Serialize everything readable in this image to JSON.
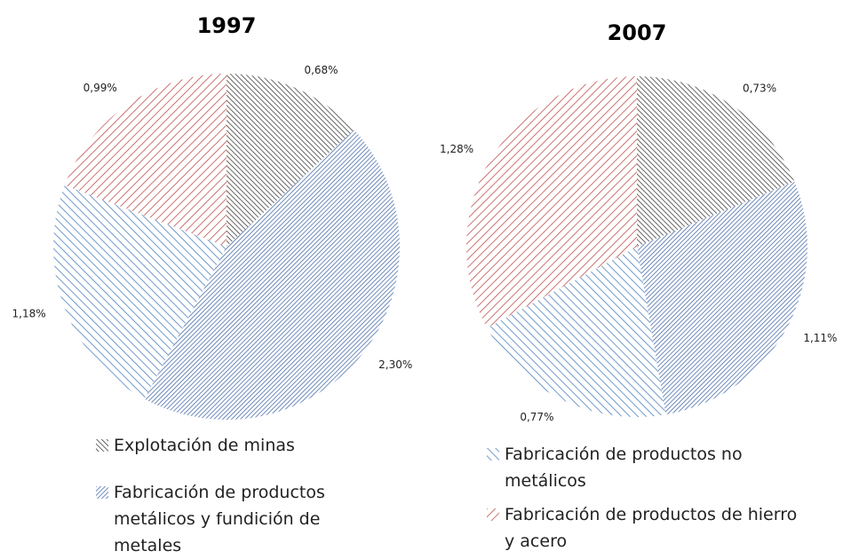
{
  "chart_data": [
    {
      "type": "pie",
      "title": "1997",
      "values": [
        0.68,
        2.3,
        1.18,
        0.99
      ],
      "value_labels": [
        "0,68%",
        "2,30%",
        "1,18%",
        "0,99%"
      ]
    },
    {
      "type": "pie",
      "title": "2007",
      "values": [
        0.73,
        1.11,
        0.77,
        1.28
      ],
      "value_labels": [
        "0,73%",
        "1,11%",
        "0,77%",
        "1,28%"
      ]
    }
  ],
  "legend": {
    "entries": [
      {
        "name": "Explotación de minas",
        "color": "#404040"
      },
      {
        "name": "Fabricación de productos metálicos y fundición de metales",
        "color": "#4a6ea8"
      },
      {
        "name": "Fabricación de productos no metálicos",
        "color": "#4f81bd"
      },
      {
        "name": "Fabricación de productos de hierro y acero",
        "color": "#c0504d"
      }
    ]
  }
}
